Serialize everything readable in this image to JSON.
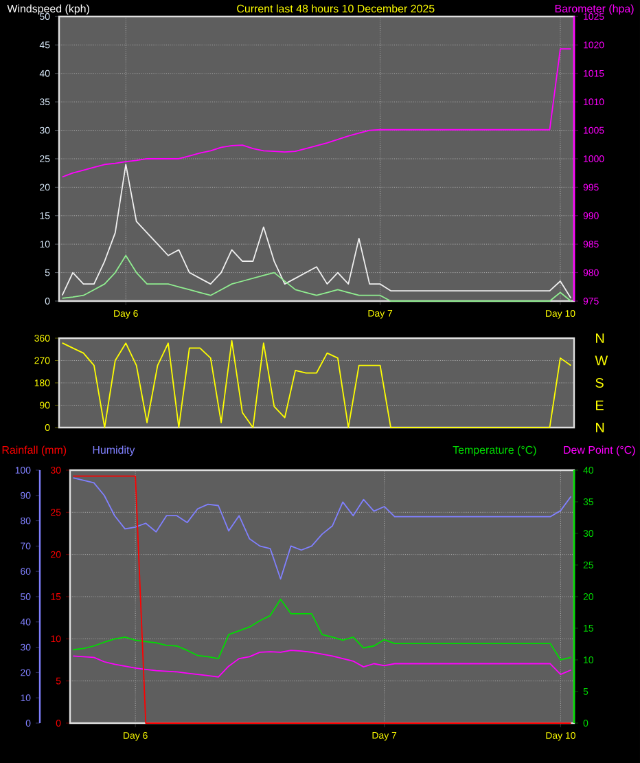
{
  "chart_data": [
    {
      "type": "line",
      "title": "Current last 48 hours 10 December 2025",
      "ylabel": "Windspeed (kph)",
      "y2label": "Barometer (hpa)",
      "grid": true,
      "categories": [
        null,
        null,
        null,
        null,
        null,
        null,
        "Day 6",
        null,
        null,
        null,
        null,
        null,
        null,
        null,
        null,
        null,
        null,
        null,
        null,
        null,
        null,
        null,
        null,
        null,
        null,
        null,
        null,
        null,
        null,
        null,
        "Day 7",
        null,
        null,
        null,
        null,
        null,
        null,
        null,
        null,
        null,
        null,
        null,
        null,
        null,
        null,
        null,
        null,
        "Day 10",
        null
      ],
      "ylim": [
        0,
        50
      ],
      "yticks": [
        0,
        5,
        10,
        15,
        20,
        25,
        30,
        35,
        40,
        45,
        50
      ],
      "y2lim": [
        975,
        1025
      ],
      "y2ticks": [
        975,
        980,
        985,
        990,
        995,
        1000,
        1005,
        1010,
        1015,
        1020,
        1025
      ],
      "series": [
        {
          "color": "#f0f0f0",
          "values": [
            1,
            5,
            3,
            3,
            7,
            12,
            24,
            14,
            12,
            10,
            8,
            9,
            5,
            4,
            3,
            5,
            9,
            7,
            7,
            13,
            7,
            3,
            4,
            5,
            6,
            3,
            5,
            3,
            11,
            3,
            3,
            1.8,
            1.8,
            1.8,
            1.8,
            1.8,
            1.8,
            1.8,
            1.8,
            1.8,
            1.8,
            1.8,
            1.8,
            1.8,
            1.8,
            1.8,
            1.8,
            3.5,
            0.5
          ]
        },
        {
          "color": "#90ee90",
          "values": [
            0.5,
            0.7,
            1,
            2,
            3,
            5,
            8,
            5,
            3,
            3,
            3,
            2.5,
            2,
            1.5,
            1,
            2,
            3,
            3.5,
            4,
            4.5,
            5,
            3.5,
            2,
            1.5,
            1,
            1.5,
            2,
            1.5,
            1,
            1,
            1,
            0,
            0,
            0,
            0,
            0,
            0,
            0,
            0,
            0,
            0,
            0,
            0,
            0,
            0,
            0,
            0,
            1.5,
            0
          ]
        },
        {
          "color": "#ff00ff",
          "axis": "y2",
          "values": [
            996.8,
            997.5,
            998,
            998.5,
            999,
            999.2,
            999.5,
            999.7,
            1000,
            1000,
            1000,
            1000,
            1000.5,
            1001,
            1001.4,
            1002,
            1002.3,
            1002.4,
            1001.8,
            1001.4,
            1001.3,
            1001.2,
            1001.3,
            1001.8,
            1002.3,
            1002.8,
            1003.4,
            1004,
            1004.5,
            1005,
            1005.1,
            1005.1,
            1005.1,
            1005.1,
            1005.1,
            1005.1,
            1005.1,
            1005.1,
            1005.1,
            1005.1,
            1005.1,
            1005.1,
            1005.1,
            1005.1,
            1005.1,
            1005.1,
            1005.1,
            1019.3,
            1019.3
          ]
        }
      ]
    },
    {
      "type": "line",
      "grid": true,
      "annotations": [
        "N",
        "W",
        "S",
        "E",
        "N"
      ],
      "categories": [
        null,
        null,
        null,
        null,
        null,
        null,
        null,
        null,
        null,
        null,
        null,
        null,
        null,
        null,
        null,
        null,
        null,
        null,
        null,
        null,
        null,
        null,
        null,
        null,
        null,
        null,
        null,
        null,
        null,
        null,
        null,
        null,
        null,
        null,
        null,
        null,
        null,
        null,
        null,
        null,
        null,
        null,
        null,
        null,
        null,
        null,
        null,
        null,
        null
      ],
      "ylim": [
        0,
        360
      ],
      "yticks": [
        0,
        90,
        180,
        270,
        360
      ],
      "series": [
        {
          "color": "#ffff00",
          "values": [
            341,
            320,
            300,
            250,
            0,
            270,
            340,
            250,
            20,
            250,
            340,
            0,
            320,
            320,
            280,
            20,
            350,
            60,
            0,
            340,
            85,
            40,
            230,
            220,
            220,
            300,
            280,
            0,
            250,
            250,
            250,
            0,
            0,
            0,
            0,
            0,
            0,
            0,
            0,
            0,
            0,
            0,
            0,
            0,
            0,
            0,
            0,
            280,
            250
          ]
        }
      ]
    },
    {
      "type": "line",
      "grid": true,
      "categories": [
        null,
        null,
        null,
        null,
        null,
        null,
        "Day 6",
        null,
        null,
        null,
        null,
        null,
        null,
        null,
        null,
        null,
        null,
        null,
        null,
        null,
        null,
        null,
        null,
        null,
        null,
        null,
        null,
        null,
        null,
        null,
        "Day 7",
        null,
        null,
        null,
        null,
        null,
        null,
        null,
        null,
        null,
        null,
        null,
        null,
        null,
        null,
        null,
        null,
        "Day 10",
        null
      ],
      "ylim": [
        0,
        30
      ],
      "yticks": [
        0,
        5,
        10,
        15,
        20,
        25,
        30
      ],
      "y2lim": [
        0,
        40
      ],
      "y2ticks": [
        0,
        5,
        10,
        15,
        20,
        25,
        30,
        35,
        40
      ],
      "y3lim": [
        0,
        100
      ],
      "y3ticks": [
        0,
        10,
        20,
        30,
        40,
        50,
        60,
        70,
        80,
        90,
        100
      ],
      "series": [
        {
          "name": "Rainfall (mm)",
          "color": "#ff0000",
          "values": [
            29.3,
            29.3,
            29.3,
            29.3,
            29.3,
            29.3,
            29.3,
            0,
            0,
            0,
            0,
            0,
            0,
            0,
            0,
            0,
            0,
            0,
            0,
            0,
            0,
            0,
            0,
            0,
            0,
            0,
            0,
            0,
            0,
            0,
            0,
            0,
            0,
            0,
            0,
            0,
            0,
            0,
            0,
            0,
            0,
            0,
            0,
            0,
            0,
            0,
            0,
            0,
            0
          ]
        },
        {
          "name": "Humidity",
          "color": "#8080ff",
          "axis": "y3",
          "values": [
            97,
            96,
            95,
            90,
            82,
            76.8,
            77.5,
            79,
            75.6,
            82,
            82,
            79.3,
            84.7,
            86.5,
            86,
            76,
            82,
            72.9,
            70,
            69,
            57,
            70,
            68.4,
            70,
            74.7,
            78,
            87.4,
            82,
            88.4,
            83.8,
            85.6,
            81.6,
            81.6,
            81.6,
            81.6,
            81.6,
            81.6,
            81.6,
            81.6,
            81.6,
            81.6,
            81.6,
            81.6,
            81.6,
            81.6,
            81.6,
            81.6,
            84,
            89.6
          ]
        },
        {
          "name": "Temperature (°C)",
          "color": "#00dd00",
          "axis": "y2",
          "values": [
            11.6,
            11.8,
            12.2,
            12.8,
            13.3,
            13.6,
            13.1,
            12.9,
            12.7,
            12.3,
            12.2,
            11.5,
            10.7,
            10.5,
            10.2,
            14.0,
            14.6,
            15.2,
            16.2,
            17.0,
            19.6,
            17.3,
            17.3,
            17.3,
            14.0,
            13.6,
            13.1,
            13.6,
            11.9,
            12.2,
            13.2,
            12.6,
            12.6,
            12.6,
            12.6,
            12.6,
            12.6,
            12.6,
            12.6,
            12.6,
            12.6,
            12.6,
            12.6,
            12.6,
            12.6,
            12.6,
            12.6,
            10.0,
            10.4
          ]
        },
        {
          "name": "Dew Point (°C)",
          "color": "#ff00ff",
          "axis": "y2",
          "values": [
            10.6,
            10.5,
            10.4,
            9.7,
            9.3,
            9.0,
            8.7,
            8.5,
            8.3,
            8.2,
            8.1,
            7.9,
            7.7,
            7.5,
            7.3,
            9.0,
            10.2,
            10.5,
            11.2,
            11.3,
            11.2,
            11.5,
            11.4,
            11.2,
            10.9,
            10.6,
            10.2,
            9.8,
            8.9,
            9.4,
            9.1,
            9.4,
            9.4,
            9.4,
            9.4,
            9.4,
            9.4,
            9.4,
            9.4,
            9.4,
            9.4,
            9.4,
            9.4,
            9.4,
            9.4,
            9.4,
            9.4,
            7.7,
            8.4
          ]
        }
      ]
    }
  ]
}
